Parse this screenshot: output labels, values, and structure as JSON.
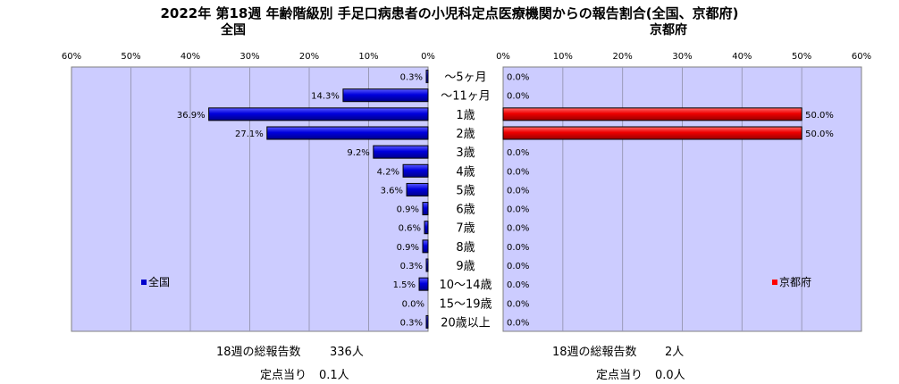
{
  "title": "2022年 第18週  年齢階級別 手足口病患者の小児科定点医療機関からの報告割合(全国、京都府)",
  "age_groups": [
    "～5ヶ月",
    "～11ヶ月",
    "1歳",
    "2歳",
    "3歳",
    "4歳",
    "5歳",
    "6歳",
    "7歳",
    "8歳",
    "9歳",
    "10～14歳",
    "15～19歳",
    "20歳以上"
  ],
  "summary_labels": {
    "total": "18週の総報告数",
    "per_site": "定点当り"
  },
  "chart_data": [
    {
      "type": "bar",
      "orientation": "horizontal",
      "direction": "right-to-left",
      "title": "全国",
      "categories": [
        "～5ヶ月",
        "～11ヶ月",
        "1歳",
        "2歳",
        "3歳",
        "4歳",
        "5歳",
        "6歳",
        "7歳",
        "8歳",
        "9歳",
        "10～14歳",
        "15～19歳",
        "20歳以上"
      ],
      "series": [
        {
          "name": "全国",
          "color": "#0000cc",
          "values": [
            0.3,
            14.3,
            36.9,
            27.1,
            9.2,
            4.2,
            3.6,
            0.9,
            0.6,
            0.9,
            0.3,
            1.5,
            0.0,
            0.3
          ],
          "labels": [
            "0.3%",
            "14.3%",
            "36.9%",
            "27.1%",
            "9.2%",
            "4.2%",
            "3.6%",
            "0.9%",
            "0.6%",
            "0.9%",
            "0.3%",
            "1.5%",
            "0.0%",
            "0.3%"
          ]
        }
      ],
      "xlim": [
        0,
        60
      ],
      "xticks": [
        "0%",
        "10%",
        "20%",
        "30%",
        "40%",
        "50%",
        "60%"
      ],
      "grid": true,
      "plot_background": "#ccccff",
      "legend_position": "bottom-left",
      "total_reports": "336人",
      "per_site": "0.1人"
    },
    {
      "type": "bar",
      "orientation": "horizontal",
      "direction": "left-to-right",
      "title": "京都府",
      "categories": [
        "～5ヶ月",
        "～11ヶ月",
        "1歳",
        "2歳",
        "3歳",
        "4歳",
        "5歳",
        "6歳",
        "7歳",
        "8歳",
        "9歳",
        "10～14歳",
        "15～19歳",
        "20歳以上"
      ],
      "series": [
        {
          "name": "京都府",
          "color": "#ff0000",
          "values": [
            0.0,
            0.0,
            50.0,
            50.0,
            0.0,
            0.0,
            0.0,
            0.0,
            0.0,
            0.0,
            0.0,
            0.0,
            0.0,
            0.0
          ],
          "labels": [
            "0.0%",
            "0.0%",
            "50.0%",
            "50.0%",
            "0.0%",
            "0.0%",
            "0.0%",
            "0.0%",
            "0.0%",
            "0.0%",
            "0.0%",
            "0.0%",
            "0.0%",
            "0.0%"
          ]
        }
      ],
      "xlim": [
        0,
        60
      ],
      "xticks": [
        "0%",
        "10%",
        "20%",
        "30%",
        "40%",
        "50%",
        "60%"
      ],
      "grid": true,
      "plot_background": "#ccccff",
      "legend_position": "bottom-right",
      "total_reports": "2人",
      "per_site": "0.0人"
    }
  ]
}
